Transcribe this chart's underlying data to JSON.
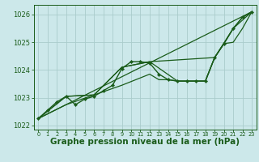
{
  "background_color": "#cce8ea",
  "grid_color": "#aacccc",
  "line_color": "#1a5c1a",
  "xlabel": "Graphe pression niveau de la mer (hPa)",
  "xlabel_fontsize": 7.5,
  "xlim": [
    -0.5,
    23.5
  ],
  "ylim": [
    1021.85,
    1026.35
  ],
  "yticks": [
    1022,
    1023,
    1024,
    1025,
    1026
  ],
  "xticks": [
    0,
    1,
    2,
    3,
    4,
    5,
    6,
    7,
    8,
    9,
    10,
    11,
    12,
    13,
    14,
    15,
    16,
    17,
    18,
    19,
    20,
    21,
    22,
    23
  ],
  "lines": [
    {
      "x": [
        0,
        1,
        2,
        3,
        4,
        5,
        6,
        7,
        8,
        9,
        10,
        11,
        12,
        13,
        14,
        15,
        16,
        17,
        18,
        19,
        20,
        21,
        22,
        23
      ],
      "y": [
        1022.25,
        1022.55,
        1022.85,
        1023.05,
        1022.75,
        1022.95,
        1023.05,
        1023.25,
        1023.45,
        1024.05,
        1024.3,
        1024.3,
        1024.25,
        1023.85,
        1023.65,
        1023.6,
        1023.6,
        1023.6,
        1023.6,
        1024.45,
        1024.95,
        1025.5,
        1025.9,
        1026.1
      ],
      "marker": true,
      "lw": 1.0
    },
    {
      "x": [
        0,
        23
      ],
      "y": [
        1022.25,
        1026.1
      ],
      "marker": false,
      "lw": 0.9
    },
    {
      "x": [
        0,
        3,
        6,
        9,
        12,
        19,
        21,
        23
      ],
      "y": [
        1022.25,
        1023.05,
        1023.1,
        1024.1,
        1024.3,
        1024.45,
        1025.5,
        1026.1
      ],
      "marker": false,
      "lw": 0.9
    },
    {
      "x": [
        0,
        3,
        6,
        9,
        12,
        15,
        16,
        17,
        18,
        19,
        20,
        21,
        22,
        23
      ],
      "y": [
        1022.25,
        1023.05,
        1023.1,
        1024.1,
        1024.3,
        1023.6,
        1023.6,
        1023.6,
        1023.6,
        1024.45,
        1024.95,
        1025.5,
        1025.9,
        1026.1
      ],
      "marker": false,
      "lw": 0.9
    },
    {
      "x": [
        0,
        3,
        9,
        12,
        13,
        14,
        15,
        16,
        17,
        18,
        19,
        20,
        21,
        22,
        23
      ],
      "y": [
        1022.25,
        1022.75,
        1023.45,
        1023.85,
        1023.65,
        1023.65,
        1023.6,
        1023.6,
        1023.6,
        1023.6,
        1024.45,
        1024.95,
        1025.0,
        1025.5,
        1026.1
      ],
      "marker": false,
      "lw": 0.9
    }
  ]
}
